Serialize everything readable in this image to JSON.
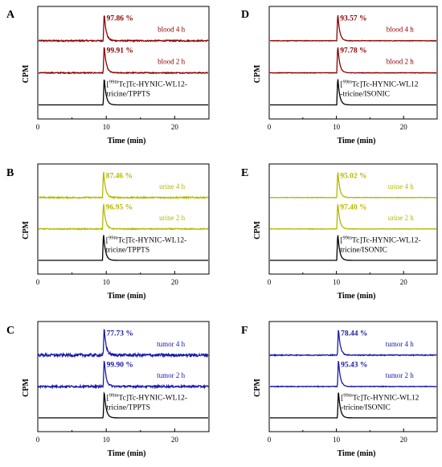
{
  "chart_data": [
    {
      "type": "line",
      "panel": "A",
      "xlabel": "Time (min)",
      "ylabel": "CPM",
      "xlim": [
        0,
        25
      ],
      "x_ticks": [
        "0",
        "10",
        "20"
      ],
      "standard": {
        "line1_pre": "[",
        "sup": "99m",
        "line1_post": "Tc]Tc-HYNIC-WL12-",
        "line2": "tricine/TPPTS"
      },
      "series": [
        {
          "name": "blood 4 h",
          "percent": "97.86 %",
          "color": "#8b0000",
          "peak_min": 9.7,
          "noise": 0.04
        },
        {
          "name": "blood 2 h",
          "percent": "99.91 %",
          "color": "#8b0000",
          "peak_min": 9.7,
          "noise": 0.03
        },
        {
          "name": "standard",
          "percent": "",
          "color": "#000000",
          "peak_min": 9.7,
          "noise": 0.0
        }
      ]
    },
    {
      "type": "line",
      "panel": "D",
      "xlabel": "Time (min)",
      "ylabel": "CPM",
      "xlim": [
        0,
        25
      ],
      "x_ticks": [
        "0",
        "10",
        "20"
      ],
      "standard": {
        "line1_pre": "[",
        "sup": "99m",
        "line1_post": "Tc]Tc-HYNIC-WL12",
        "line2": "-tricine/ISONIC"
      },
      "series": [
        {
          "name": "blood 4 h",
          "percent": "93.57 %",
          "color": "#8b0000",
          "peak_min": 10.2,
          "noise": 0.015
        },
        {
          "name": "blood 2 h",
          "percent": "97.78  %",
          "color": "#8b0000",
          "peak_min": 10.2,
          "noise": 0.015
        },
        {
          "name": "standard",
          "percent": "",
          "color": "#000000",
          "peak_min": 10.2,
          "noise": 0.0
        }
      ]
    },
    {
      "type": "line",
      "panel": "B",
      "xlabel": "Time (min)",
      "ylabel": "CPM",
      "xlim": [
        0,
        25
      ],
      "x_ticks": [
        "0",
        "10",
        "20"
      ],
      "standard": {
        "line1_pre": "[",
        "sup": "99m",
        "line1_post": "Tc]Tc-HYNIC-WL12-",
        "line2": "tricine/TPPTS"
      },
      "series": [
        {
          "name": "urine 4 h",
          "percent": "87.46 %",
          "color": "#b5b800",
          "peak_min": 9.6,
          "noise": 0.04
        },
        {
          "name": "urine 2 h",
          "percent": "96.95 %",
          "color": "#b5b800",
          "peak_min": 9.6,
          "noise": 0.03
        },
        {
          "name": "standard",
          "percent": "",
          "color": "#000000",
          "peak_min": 9.6,
          "noise": 0.0
        }
      ]
    },
    {
      "type": "line",
      "panel": "E",
      "xlabel": "Time (min)",
      "ylabel": "CPM",
      "xlim": [
        0,
        25
      ],
      "x_ticks": [
        "0",
        "10",
        "20"
      ],
      "standard": {
        "line1_pre": "[",
        "sup": "99m",
        "line1_post": "Tc]Tc-HYNIC-WL12-",
        "line2": "tricine/ISONIC"
      },
      "series": [
        {
          "name": "urine 4 h",
          "percent": "95.02 %",
          "color": "#b5b800",
          "peak_min": 10.2,
          "noise": 0.015
        },
        {
          "name": "urine 2 h",
          "percent": "97.40  %",
          "color": "#b5b800",
          "peak_min": 10.2,
          "noise": 0.015
        },
        {
          "name": "standard",
          "percent": "",
          "color": "#000000",
          "peak_min": 10.2,
          "noise": 0.0
        }
      ]
    },
    {
      "type": "line",
      "panel": "C",
      "xlabel": "Time (min)",
      "ylabel": "CPM",
      "xlim": [
        0,
        25
      ],
      "x_ticks": [
        "0",
        "10",
        "20"
      ],
      "standard": {
        "line1_pre": "[",
        "sup": "99m",
        "line1_post": "Tc]Tc-HYNIC-WL12-",
        "line2": "tricine/TPPTS"
      },
      "series": [
        {
          "name": "tumor 4 h",
          "percent": "77.73 %",
          "color": "#1a1aa8",
          "peak_min": 9.7,
          "noise": 0.09
        },
        {
          "name": "tumor 2 h",
          "percent": "99.90 %",
          "color": "#1a1aa8",
          "peak_min": 9.7,
          "noise": 0.06
        },
        {
          "name": "standard",
          "percent": "",
          "color": "#000000",
          "peak_min": 9.7,
          "noise": 0.0
        }
      ]
    },
    {
      "type": "line",
      "panel": "F",
      "xlabel": "Time (min)",
      "ylabel": "CPM",
      "xlim": [
        0,
        25
      ],
      "x_ticks": [
        "0",
        "10",
        "20"
      ],
      "standard": {
        "line1_pre": "[",
        "sup": "99m",
        "line1_post": "Tc]Tc-HYNIC-WL12",
        "line2": "-tricine/ISONIC"
      },
      "series": [
        {
          "name": "tumor 4 h",
          "percent": "78.44 %",
          "color": "#1a1aa8",
          "peak_min": 10.3,
          "noise": 0.03
        },
        {
          "name": "tumor 2 h",
          "percent": "95.43  %",
          "color": "#1a1aa8",
          "peak_min": 10.3,
          "noise": 0.02
        },
        {
          "name": "standard",
          "percent": "",
          "color": "#000000",
          "peak_min": 10.3,
          "noise": 0.0
        }
      ]
    }
  ]
}
